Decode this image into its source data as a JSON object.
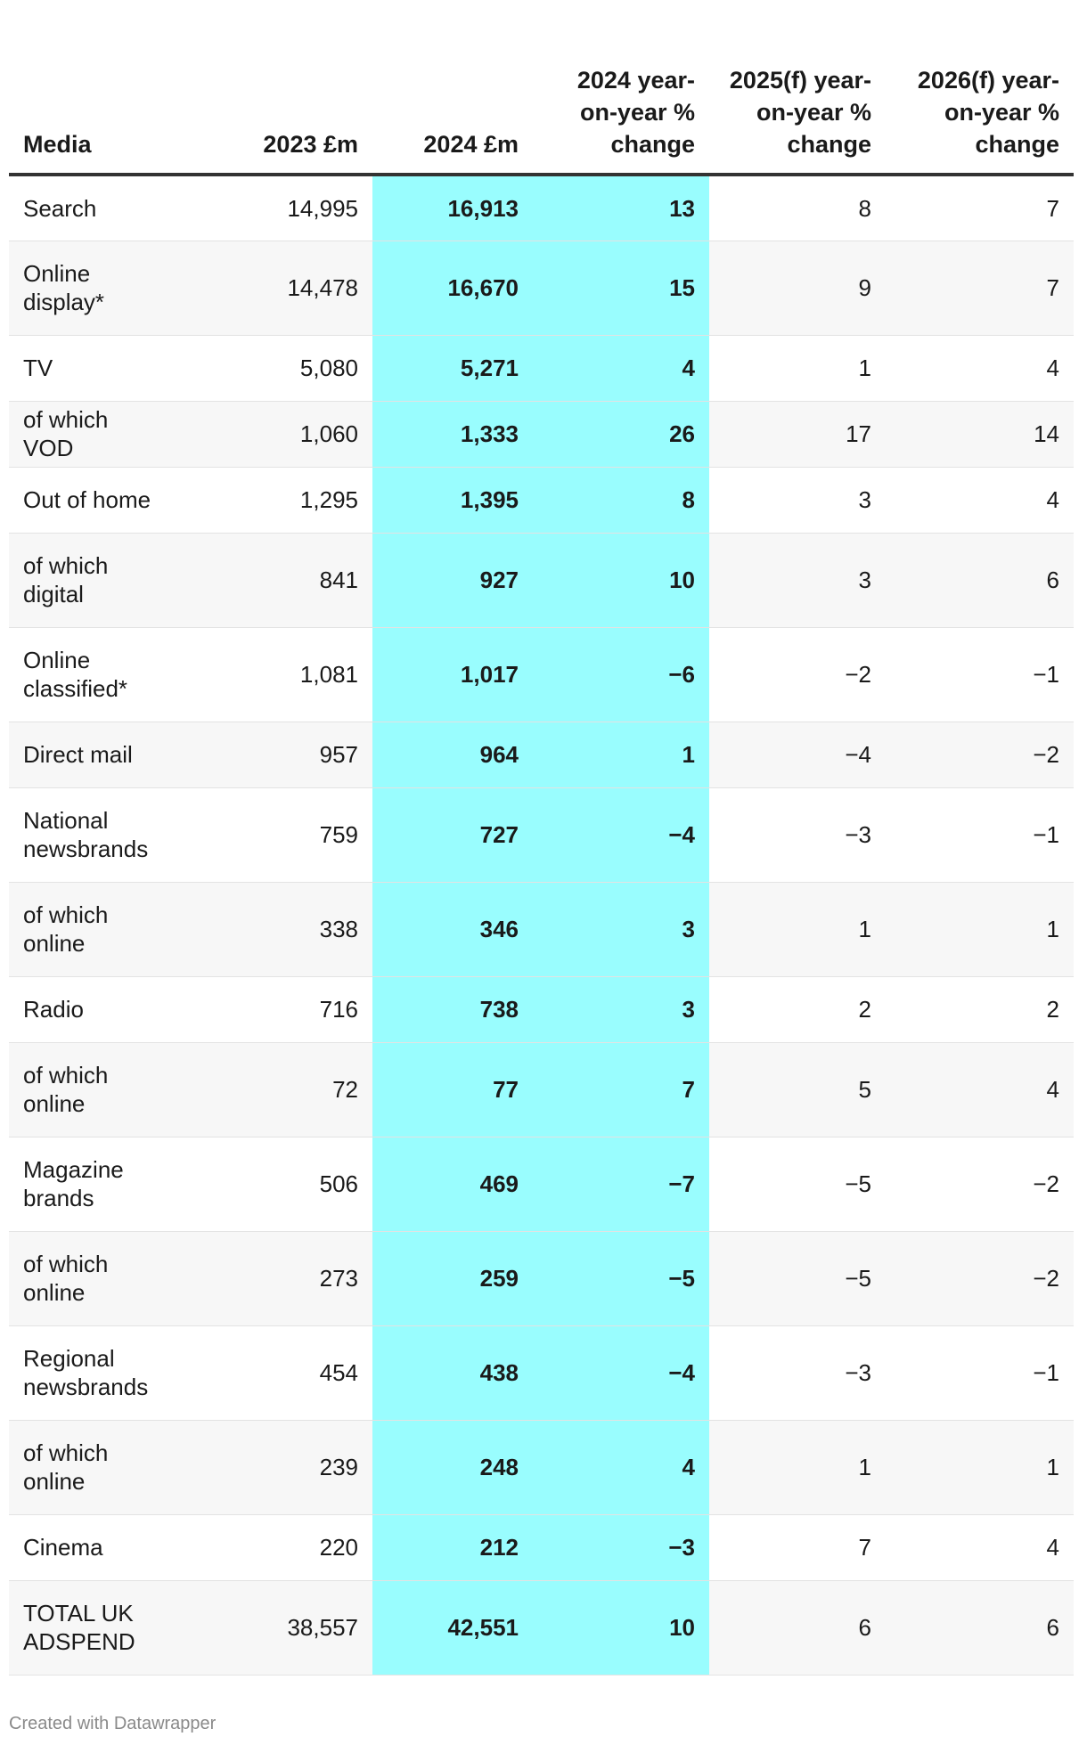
{
  "colors": {
    "highlight": "#99fdfe",
    "alt_row": "#f7f7f7",
    "header_rule": "#333333"
  },
  "headers": [
    "Media",
    "2023 £m",
    "2024 £m",
    "2024 year-on-year % change",
    "2025(f) year-on-year % change",
    "2026(f) year-on-year % change"
  ],
  "rows": [
    [
      "Search",
      "14,995",
      "16,913",
      "13",
      "8",
      "7"
    ],
    [
      "Online display*",
      "14,478",
      "16,670",
      "15",
      "9",
      "7"
    ],
    [
      "TV",
      "5,080",
      "5,271",
      "4",
      "1",
      "4"
    ],
    [
      "of which VOD",
      "1,060",
      "1,333",
      "26",
      "17",
      "14"
    ],
    [
      "Out of home",
      "1,295",
      "1,395",
      "8",
      "3",
      "4"
    ],
    [
      "of which digital",
      "841",
      "927",
      "10",
      "3",
      "6"
    ],
    [
      "Online classified*",
      "1,081",
      "1,017",
      "−6",
      "−2",
      "−1"
    ],
    [
      "Direct mail",
      "957",
      "964",
      "1",
      "−4",
      "−2"
    ],
    [
      "National newsbrands",
      "759",
      "727",
      "−4",
      "−3",
      "−1"
    ],
    [
      "of which online",
      "338",
      "346",
      "3",
      "1",
      "1"
    ],
    [
      "Radio",
      "716",
      "738",
      "3",
      "2",
      "2"
    ],
    [
      "of which online",
      "72",
      "77",
      "7",
      "5",
      "4"
    ],
    [
      "Magazine brands",
      "506",
      "469",
      "−7",
      "−5",
      "−2"
    ],
    [
      "of which online",
      "273",
      "259",
      "−5",
      "−5",
      "−2"
    ],
    [
      "Regional newsbrands",
      "454",
      "438",
      "−4",
      "−3",
      "−1"
    ],
    [
      "of which online",
      "239",
      "248",
      "4",
      "1",
      "1"
    ],
    [
      "Cinema",
      "220",
      "212",
      "−3",
      "7",
      "4"
    ],
    [
      "TOTAL UK ADSPEND",
      "38,557",
      "42,551",
      "10",
      "6",
      "6"
    ]
  ],
  "footer": {
    "credit": "Created with Datawrapper"
  }
}
